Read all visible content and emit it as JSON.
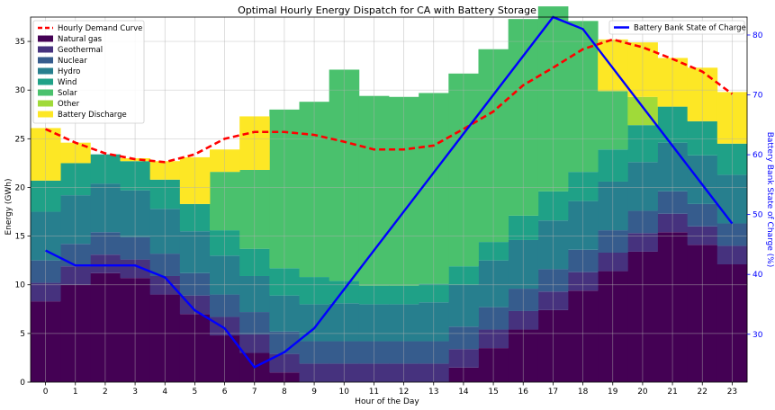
{
  "chart_data": {
    "type": "area",
    "title": "Optimal Hourly Energy Dispatch for CA with Battery Storage",
    "xlabel": "Hour of the Day",
    "ylabel": "Energy (GWh)",
    "y2label": "Battery Bank State of Charge (%)",
    "x": [
      0,
      1,
      2,
      3,
      4,
      5,
      6,
      7,
      8,
      9,
      10,
      11,
      12,
      13,
      14,
      15,
      16,
      17,
      18,
      19,
      20,
      21,
      22,
      23
    ],
    "xlim": [
      -0.5,
      23.5
    ],
    "ylim": [
      0,
      37.5
    ],
    "y2lim": [
      22,
      83
    ],
    "yticks": [
      0,
      5,
      10,
      15,
      20,
      25,
      30,
      35
    ],
    "y2ticks": [
      30,
      40,
      50,
      60,
      70,
      80
    ],
    "grid": true,
    "legend_left_position": "top-left",
    "legend_right_position": "top-right",
    "stack": [
      {
        "name": "Natural gas",
        "color": "#440154",
        "values": [
          8.3,
          10.0,
          11.2,
          10.7,
          9.0,
          7.0,
          4.8,
          3.0,
          1.0,
          0,
          0,
          0,
          0,
          0,
          1.5,
          3.5,
          5.4,
          7.4,
          9.4,
          11.4,
          13.4,
          15.4,
          14.1,
          12.1
        ]
      },
      {
        "name": "Geothermal",
        "color": "#46327e",
        "values": [
          1.9,
          1.9,
          1.9,
          1.9,
          1.9,
          1.9,
          1.9,
          1.9,
          1.9,
          1.9,
          1.9,
          1.9,
          1.9,
          1.9,
          1.9,
          1.9,
          1.9,
          1.9,
          1.9,
          1.9,
          1.9,
          1.9,
          1.9,
          1.9
        ]
      },
      {
        "name": "Nuclear",
        "color": "#365c8d",
        "values": [
          2.3,
          2.3,
          2.3,
          2.3,
          2.3,
          2.3,
          2.3,
          2.3,
          2.3,
          2.3,
          2.3,
          2.3,
          2.3,
          2.3,
          2.3,
          2.3,
          2.3,
          2.3,
          2.3,
          2.3,
          2.3,
          2.3,
          2.3,
          2.3
        ]
      },
      {
        "name": "Hydro",
        "color": "#277f8e",
        "values": [
          5.0,
          5.0,
          5.0,
          4.8,
          4.6,
          4.3,
          4.0,
          3.7,
          3.7,
          3.8,
          3.9,
          3.8,
          3.8,
          4.0,
          4.3,
          4.8,
          5.0,
          5.0,
          5.0,
          5.0,
          5.0,
          5.0,
          5.0,
          5.0
        ]
      },
      {
        "name": "Wind",
        "color": "#1fa187",
        "values": [
          3.2,
          3.3,
          3.0,
          3.0,
          3.0,
          2.8,
          2.6,
          2.8,
          2.8,
          2.8,
          2.3,
          1.9,
          1.9,
          1.9,
          1.9,
          1.9,
          2.5,
          3.0,
          3.0,
          3.3,
          3.8,
          3.7,
          3.5,
          3.2
        ]
      },
      {
        "name": "Solar",
        "color": "#4ac16d",
        "values": [
          0,
          0,
          0,
          0,
          0,
          0,
          6.0,
          8.1,
          16.3,
          18.0,
          21.7,
          19.5,
          19.4,
          19.6,
          19.8,
          19.8,
          20.2,
          19.0,
          15.5,
          6.0,
          0,
          0,
          0,
          0
        ]
      },
      {
        "name": "Other",
        "color": "#a0da39",
        "values": [
          0,
          0,
          0,
          0,
          0,
          0,
          0,
          0,
          0,
          0,
          0,
          0,
          0,
          0,
          0,
          0,
          0,
          0,
          0,
          0,
          2.9,
          0,
          0,
          0
        ]
      },
      {
        "name": "Battery Discharge",
        "color": "#fde725",
        "values": [
          5.4,
          2.1,
          0,
          0.3,
          1.9,
          4.8,
          2.3,
          5.5,
          0,
          0,
          0,
          0,
          0,
          0,
          0,
          0,
          0,
          0,
          0,
          5.3,
          5.6,
          5.0,
          5.5,
          5.3
        ]
      }
    ],
    "demand": {
      "name": "Hourly Demand Curve",
      "color": "#ff0000",
      "values": [
        26.0,
        24.6,
        23.5,
        22.9,
        22.6,
        23.4,
        25.0,
        25.7,
        25.7,
        25.4,
        24.7,
        23.9,
        23.9,
        24.3,
        26.0,
        27.8,
        30.5,
        32.3,
        34.2,
        35.2,
        34.4,
        33.2,
        31.9,
        29.6
      ]
    },
    "soc": {
      "name": "Battery Bank State of Charge",
      "color": "#0000ff",
      "values": [
        44,
        41.5,
        41.5,
        41.5,
        39.5,
        34,
        31,
        24.5,
        27,
        31,
        37.5,
        44,
        50.5,
        57,
        63.5,
        70,
        76.5,
        83,
        81,
        74.5,
        68,
        61.5,
        55,
        48.5
      ]
    }
  }
}
